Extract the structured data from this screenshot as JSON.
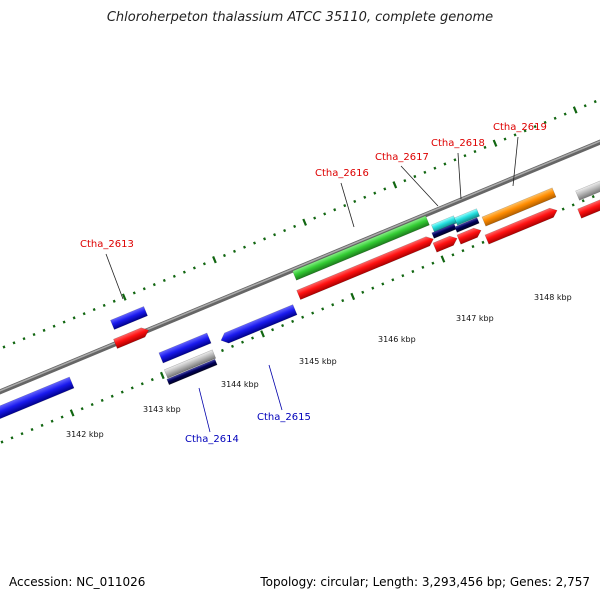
{
  "title": "Chloroherpeton thalassium ATCC 35110, complete genome",
  "footer": {
    "accession": "Accession: NC_011026",
    "summary": "Topology: circular; Length: 3,293,456 bp; Genes: 2,757"
  },
  "kbp_labels": [
    "3142 kbp",
    "3143 kbp",
    "3144 kbp",
    "3145 kbp",
    "3146 kbp",
    "3147 kbp",
    "3148 kbp"
  ],
  "gene_labels_forward": [
    "Ctha_2613",
    "Ctha_2616",
    "Ctha_2617",
    "Ctha_2618",
    "Ctha_2619"
  ],
  "gene_labels_reverse": [
    "Ctha_2614",
    "Ctha_2615"
  ],
  "colors": {
    "backbone": "#888888",
    "cds_forward": "#ff1111",
    "cds_reverse": "#1a1aee",
    "green_feature": "#33cc33",
    "orange_feature": "#ff8c00",
    "cyan_feature": "#22dddd",
    "navy_feature": "#00005a",
    "grey_feature": "#bbbbbb",
    "tick": "#116611",
    "label_forward": "#dd0000",
    "label_reverse": "#0000bb"
  }
}
